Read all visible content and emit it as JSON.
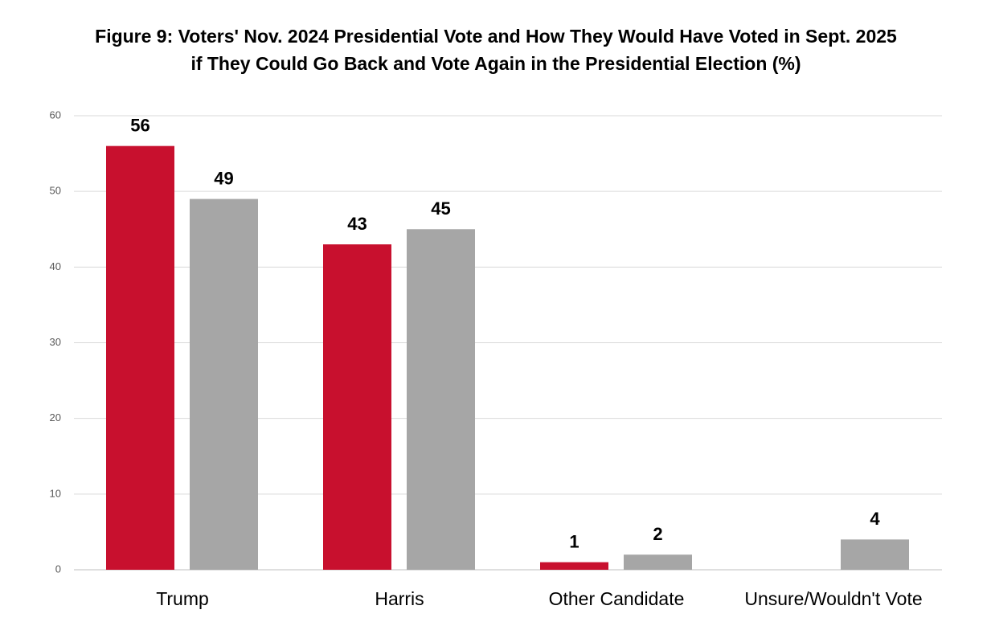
{
  "chart_data": {
    "type": "bar",
    "title": "Figure 9: Voters' Nov. 2024 Presidential Vote and How They Would Have Voted in Sept. 2025 if They Could Go Back and Vote Again in the Presidential Election (%)",
    "categories": [
      "Trump",
      "Harris",
      "Other Candidate",
      "Unsure/Wouldn't Vote"
    ],
    "series": [
      {
        "color": "#c8102e",
        "values": [
          56,
          43,
          1,
          null
        ]
      },
      {
        "color": "#a6a6a6",
        "values": [
          49,
          45,
          2,
          4
        ]
      }
    ],
    "ylim": [
      0,
      60
    ],
    "yticks": [
      0,
      10,
      20,
      30,
      40,
      50,
      60
    ],
    "grid": true
  }
}
